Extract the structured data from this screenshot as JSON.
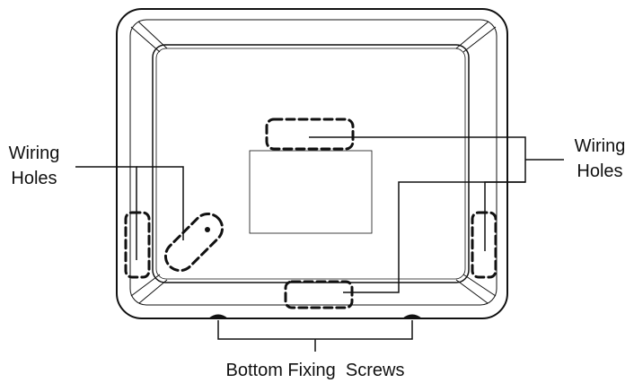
{
  "labels": {
    "wiring_holes_left_line1": "Wiring",
    "wiring_holes_left_line2": "Holes",
    "wiring_holes_right_line1": "Wiring",
    "wiring_holes_right_line2": "Holes",
    "bottom_fixing_screws": "Bottom Fixing  Screws"
  },
  "colors": {
    "stroke": "#111111",
    "label": "#111111",
    "background": "#ffffff"
  }
}
